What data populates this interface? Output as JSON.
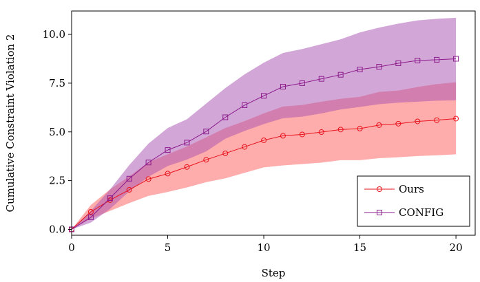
{
  "chart_data": {
    "type": "line",
    "xlabel": "Step",
    "ylabel": "Cumulative Constraint Violation 2",
    "xlim": [
      0,
      21
    ],
    "ylim": [
      -0.3,
      11.2
    ],
    "xticks": [
      0,
      5,
      10,
      15,
      20
    ],
    "yticks": [
      0.0,
      2.5,
      5.0,
      7.5,
      10.0
    ],
    "xtick_labels": [
      "0",
      "5",
      "10",
      "15",
      "20"
    ],
    "ytick_labels": [
      "0.0",
      "2.5",
      "5.0",
      "7.5",
      "10.0"
    ],
    "grid": false,
    "legend_position": "bottom-right",
    "x": [
      0,
      1,
      2,
      3,
      4,
      5,
      6,
      7,
      8,
      9,
      10,
      11,
      12,
      13,
      14,
      15,
      16,
      17,
      18,
      19,
      20
    ],
    "series": [
      {
        "name": "Ours",
        "color": "#e8121b",
        "band_color": "#ff5a5a",
        "marker": "circle",
        "values": [
          0.0,
          0.9,
          1.5,
          2.03,
          2.58,
          2.86,
          3.2,
          3.57,
          3.9,
          4.23,
          4.57,
          4.8,
          4.87,
          4.99,
          5.12,
          5.17,
          5.35,
          5.42,
          5.54,
          5.6,
          5.68
        ],
        "lower": [
          0.0,
          0.55,
          0.95,
          1.35,
          1.72,
          1.92,
          2.15,
          2.42,
          2.62,
          2.9,
          3.18,
          3.28,
          3.35,
          3.42,
          3.55,
          3.55,
          3.65,
          3.7,
          3.76,
          3.8,
          3.85
        ],
        "upper": [
          0.0,
          1.25,
          2.05,
          2.72,
          3.45,
          3.85,
          4.25,
          4.72,
          5.2,
          5.55,
          5.95,
          6.3,
          6.38,
          6.55,
          6.7,
          6.8,
          7.05,
          7.12,
          7.3,
          7.45,
          7.55
        ]
      },
      {
        "name": "CONFIG",
        "color": "#8b1a8b",
        "band_color": "#a64fb0",
        "marker": "square",
        "values": [
          0.0,
          0.62,
          1.6,
          2.6,
          3.43,
          4.07,
          4.45,
          5.02,
          5.75,
          6.37,
          6.85,
          7.32,
          7.5,
          7.72,
          7.93,
          8.2,
          8.34,
          8.52,
          8.66,
          8.7,
          8.75
        ],
        "lower": [
          0.0,
          0.35,
          1.05,
          1.95,
          2.7,
          3.25,
          3.58,
          4.0,
          4.65,
          5.05,
          5.4,
          5.7,
          5.78,
          5.95,
          6.15,
          6.28,
          6.42,
          6.5,
          6.55,
          6.6,
          6.62
        ],
        "upper": [
          0.0,
          0.95,
          2.05,
          3.3,
          4.4,
          5.2,
          5.65,
          6.45,
          7.25,
          7.95,
          8.55,
          9.05,
          9.25,
          9.5,
          9.75,
          10.1,
          10.35,
          10.55,
          10.72,
          10.8,
          10.85
        ]
      }
    ]
  }
}
